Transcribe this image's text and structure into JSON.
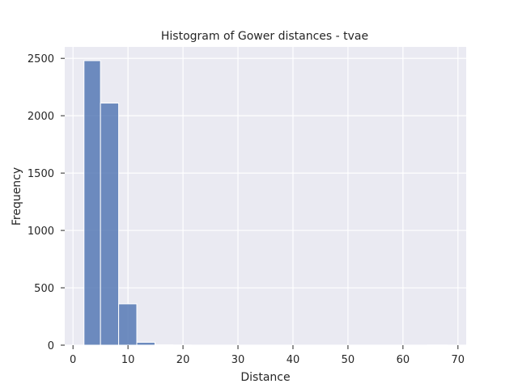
{
  "chart_data": {
    "type": "bar",
    "title": "Histogram of Gower distances - tvae",
    "xlabel": "Distance",
    "ylabel": "Frequency",
    "xlim": [
      -1.5,
      71.5
    ],
    "ylim": [
      0,
      2600
    ],
    "xticks": [
      0,
      10,
      20,
      30,
      40,
      50,
      60,
      70
    ],
    "yticks": [
      0,
      500,
      1000,
      1500,
      2000,
      2500
    ],
    "grid": true,
    "bins": [
      {
        "x0": 2.0,
        "x1": 5.0,
        "value": 2480
      },
      {
        "x0": 5.0,
        "x1": 8.3,
        "value": 2110
      },
      {
        "x0": 8.3,
        "x1": 11.6,
        "value": 360
      },
      {
        "x0": 11.6,
        "x1": 14.9,
        "value": 25
      },
      {
        "x0": 14.9,
        "x1": 18.2,
        "value": 3
      },
      {
        "x0": 18.2,
        "x1": 21.5,
        "value": 1
      },
      {
        "x0": 21.5,
        "x1": 24.8,
        "value": 0
      },
      {
        "x0": 24.8,
        "x1": 28.1,
        "value": 0
      },
      {
        "x0": 28.1,
        "x1": 31.4,
        "value": 0
      },
      {
        "x0": 31.4,
        "x1": 34.7,
        "value": 0
      },
      {
        "x0": 34.7,
        "x1": 38.0,
        "value": 0
      },
      {
        "x0": 38.0,
        "x1": 41.3,
        "value": 0
      },
      {
        "x0": 41.3,
        "x1": 44.6,
        "value": 0
      },
      {
        "x0": 44.6,
        "x1": 47.9,
        "value": 0
      },
      {
        "x0": 47.9,
        "x1": 51.2,
        "value": 0
      },
      {
        "x0": 51.2,
        "x1": 54.5,
        "value": 0
      },
      {
        "x0": 54.5,
        "x1": 57.8,
        "value": 0
      },
      {
        "x0": 57.8,
        "x1": 61.1,
        "value": 0
      },
      {
        "x0": 61.1,
        "x1": 64.4,
        "value": 0
      },
      {
        "x0": 64.4,
        "x1": 68.0,
        "value": 1
      }
    ],
    "colors": {
      "plot_background": "#eaeaf2",
      "bar_fill": "#4c72b0",
      "grid": "#ffffff",
      "text": "#262626"
    }
  }
}
